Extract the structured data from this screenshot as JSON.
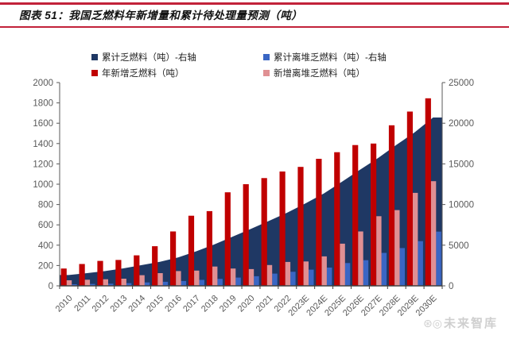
{
  "header": {
    "title": "图表 51：我国乏燃料年新增量和累计待处理量预测（吨）",
    "rule_color": "#c2223a"
  },
  "legend": {
    "items": [
      {
        "label": "累计乏燃料（吨）-右轴",
        "color": "#1f3864"
      },
      {
        "label": "累计离堆乏燃料（吨）-右轴",
        "color": "#3a66c4"
      },
      {
        "label": "年新增乏燃料（吨）",
        "color": "#c00000"
      },
      {
        "label": "新增离堆乏燃料（吨）",
        "color": "#e09093"
      }
    ]
  },
  "watermark": {
    "icons": "⊛◎",
    "text": "未来智库"
  },
  "chart_data": {
    "type": "bar",
    "subtype": "combo-area-bars",
    "title": "我国乏燃料年新增量和累计待处理量预测（吨）",
    "xlabel": "",
    "ylabel_left": "",
    "ylabel_right": "",
    "grid": false,
    "legend_position": "top",
    "categories": [
      "2010",
      "2011",
      "2012",
      "2013",
      "2014",
      "2015",
      "2016",
      "2017",
      "2018",
      "2019",
      "2020",
      "2021",
      "2022",
      "2023E",
      "2024E",
      "2025E",
      "2026E",
      "2027E",
      "2028E",
      "2029E",
      "2030E"
    ],
    "left_axis": {
      "min": 0,
      "max": 2000,
      "step": 200,
      "ticks": [
        "0",
        "200",
        "400",
        "600",
        "800",
        "1000",
        "1200",
        "1400",
        "1600",
        "1800",
        "2000"
      ]
    },
    "right_axis": {
      "min": 0,
      "max": 25000,
      "step": 5000,
      "ticks": [
        "0",
        "5000",
        "10000",
        "15000",
        "20000",
        "25000"
      ]
    },
    "axis_text_color": "#595959",
    "axis_line_color": "#595959",
    "series": [
      {
        "name": "累计乏燃料（吨）-右轴",
        "type": "area",
        "axis": "right",
        "color": "#1f3864",
        "values": [
          1330,
          1560,
          1820,
          2150,
          2550,
          2950,
          3500,
          4250,
          5100,
          6050,
          7000,
          8000,
          9000,
          10150,
          11350,
          12800,
          14300,
          15750,
          17350,
          18900,
          20700
        ]
      },
      {
        "name": "累计离堆乏燃料（吨）-右轴",
        "type": "bar",
        "axis": "right",
        "color": "#3a66c4",
        "values": [
          200,
          230,
          260,
          330,
          420,
          500,
          600,
          730,
          860,
          1020,
          1180,
          1500,
          1730,
          1990,
          2250,
          2800,
          3150,
          4050,
          4650,
          5500,
          6670
        ]
      },
      {
        "name": "年新增乏燃料（吨）",
        "type": "bar",
        "axis": "left",
        "color": "#c00000",
        "values": [
          170,
          215,
          245,
          255,
          300,
          390,
          535,
          690,
          735,
          920,
          1000,
          1060,
          1125,
          1170,
          1250,
          1315,
          1385,
          1400,
          1580,
          1715,
          1845
        ]
      },
      {
        "name": "新增离堆乏燃料（吨）",
        "type": "bar",
        "axis": "left",
        "color": "#e09093",
        "values": [
          55,
          60,
          65,
          70,
          105,
          125,
          145,
          150,
          190,
          170,
          165,
          205,
          235,
          240,
          290,
          415,
          535,
          685,
          745,
          915,
          1030
        ]
      }
    ]
  }
}
